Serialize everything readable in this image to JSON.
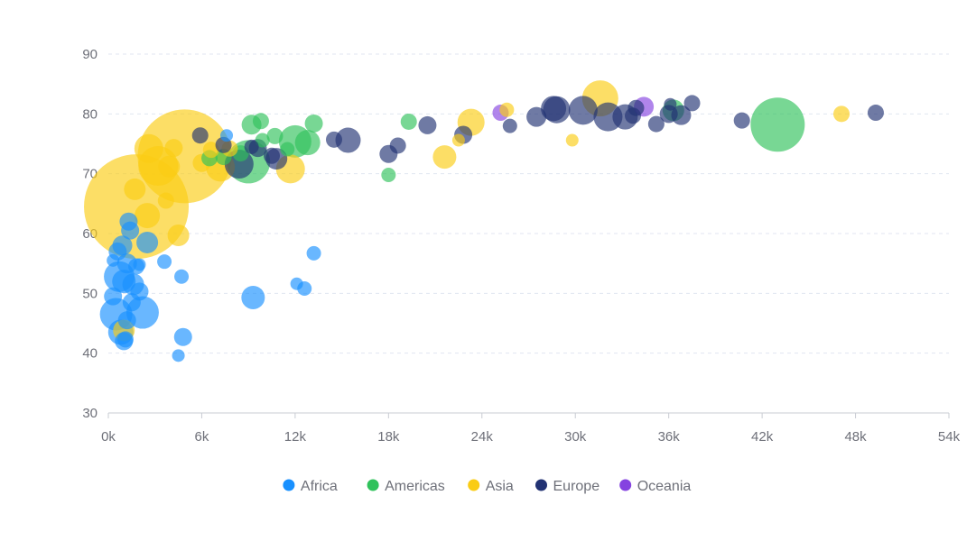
{
  "chart_data": {
    "type": "scatter",
    "subtype": "bubble",
    "title": "",
    "xlabel": "",
    "ylabel": "",
    "xlim": [
      0,
      54000
    ],
    "ylim": [
      30,
      90
    ],
    "x_ticks": [
      0,
      6000,
      12000,
      18000,
      24000,
      30000,
      36000,
      42000,
      48000,
      54000
    ],
    "x_tick_labels": [
      "0k",
      "6k",
      "12k",
      "18k",
      "24k",
      "30k",
      "36k",
      "42k",
      "48k",
      "54k"
    ],
    "y_ticks": [
      30,
      40,
      50,
      60,
      70,
      80,
      90
    ],
    "y_tick_labels": [
      "30",
      "40",
      "50",
      "60",
      "70",
      "80",
      "90"
    ],
    "grid": "horizontal dashed",
    "legend_position": "bottom-center",
    "series": [
      {
        "name": "Africa",
        "color": "#1890ff",
        "points": [
          [
            500,
            46.5,
            18
          ],
          [
            700,
            52.8,
            17
          ],
          [
            300,
            49.5,
            10
          ],
          [
            800,
            43.5,
            14
          ],
          [
            600,
            57,
            10
          ],
          [
            1000,
            42,
            10
          ],
          [
            900,
            58,
            11
          ],
          [
            1200,
            55,
            11
          ],
          [
            1500,
            48.5,
            10
          ],
          [
            1800,
            54.5,
            9
          ],
          [
            1600,
            51.5,
            12
          ],
          [
            2000,
            50.3,
            10
          ],
          [
            2200,
            46.8,
            18
          ],
          [
            2500,
            58.5,
            12
          ],
          [
            3600,
            55.3,
            8
          ],
          [
            4700,
            52.8,
            8
          ],
          [
            4800,
            42.7,
            10
          ],
          [
            4500,
            39.6,
            7
          ],
          [
            1300,
            62,
            10
          ],
          [
            9300,
            49.3,
            13
          ],
          [
            12100,
            51.6,
            7
          ],
          [
            12600,
            50.8,
            8
          ],
          [
            13200,
            56.7,
            8
          ],
          [
            1000,
            52,
            13
          ],
          [
            1400,
            60.5,
            10
          ],
          [
            1100,
            42.3,
            9
          ],
          [
            2000,
            54.8,
            7
          ],
          [
            300,
            55.5,
            7
          ],
          [
            7600,
            76.4,
            7
          ],
          [
            1200,
            45.5,
            10
          ]
        ]
      },
      {
        "name": "Americas",
        "color": "#2fc25b",
        "points": [
          [
            43000,
            78.2,
            30
          ],
          [
            36300,
            80.6,
            12
          ],
          [
            9000,
            72,
            24
          ],
          [
            12000,
            75.4,
            18
          ],
          [
            12800,
            75.2,
            14
          ],
          [
            13200,
            78.4,
            10
          ],
          [
            9800,
            78.8,
            9
          ],
          [
            9200,
            78.2,
            11
          ],
          [
            10700,
            76.3,
            9
          ],
          [
            9900,
            75.6,
            8
          ],
          [
            11500,
            74.1,
            8
          ],
          [
            7400,
            72.8,
            9
          ],
          [
            18000,
            69.8,
            8
          ],
          [
            19300,
            78.7,
            9
          ],
          [
            6500,
            72.6,
            9
          ],
          [
            8500,
            73.4,
            9
          ]
        ]
      },
      {
        "name": "Asia",
        "color": "#facc14",
        "points": [
          [
            4900,
            72.9,
            52
          ],
          [
            1800,
            64.5,
            58
          ],
          [
            3200,
            71.3,
            22
          ],
          [
            2600,
            74.2,
            16
          ],
          [
            1700,
            67.4,
            12
          ],
          [
            4500,
            59.7,
            12
          ],
          [
            3900,
            71.2,
            12
          ],
          [
            7200,
            71.1,
            16
          ],
          [
            11700,
            70.8,
            16
          ],
          [
            6600,
            74,
            9
          ],
          [
            4200,
            74.3,
            10
          ],
          [
            3700,
            65.5,
            9
          ],
          [
            21600,
            72.8,
            13
          ],
          [
            23300,
            78.6,
            15
          ],
          [
            25600,
            80.7,
            8
          ],
          [
            31600,
            82.6,
            20
          ],
          [
            29800,
            75.6,
            7
          ],
          [
            47100,
            80.0,
            9
          ],
          [
            22500,
            75.6,
            7
          ],
          [
            1000,
            43.8,
            12
          ],
          [
            2500,
            63,
            14
          ],
          [
            6000,
            71.8,
            10
          ],
          [
            7800,
            74.2,
            9
          ]
        ]
      },
      {
        "name": "Europe",
        "color": "#223273",
        "points": [
          [
            49300,
            80.2,
            9
          ],
          [
            40700,
            78.9,
            9
          ],
          [
            37500,
            81.8,
            9
          ],
          [
            36800,
            79.8,
            11
          ],
          [
            36000,
            80.0,
            10
          ],
          [
            36100,
            81.6,
            7
          ],
          [
            35200,
            78.3,
            9
          ],
          [
            33900,
            81.0,
            9
          ],
          [
            33700,
            79.7,
            9
          ],
          [
            33200,
            79.5,
            14
          ],
          [
            32100,
            79.5,
            16
          ],
          [
            30500,
            80.6,
            16
          ],
          [
            28800,
            80.7,
            15
          ],
          [
            28600,
            80.9,
            14
          ],
          [
            27500,
            79.5,
            11
          ],
          [
            25800,
            78.0,
            8
          ],
          [
            22800,
            76.5,
            10
          ],
          [
            20500,
            78.1,
            10
          ],
          [
            18600,
            74.7,
            9
          ],
          [
            18000,
            73.3,
            10
          ],
          [
            15400,
            75.6,
            14
          ],
          [
            14500,
            75.7,
            9
          ],
          [
            10800,
            72.5,
            12
          ],
          [
            10500,
            73.0,
            9
          ],
          [
            9600,
            74.3,
            10
          ],
          [
            9200,
            74.5,
            8
          ],
          [
            8400,
            71.6,
            16
          ],
          [
            7400,
            74.8,
            9
          ],
          [
            5900,
            76.4,
            9
          ]
        ]
      },
      {
        "name": "Oceania",
        "color": "#8543e0",
        "points": [
          [
            34400,
            81.2,
            11
          ],
          [
            25200,
            80.2,
            9
          ]
        ]
      }
    ]
  }
}
